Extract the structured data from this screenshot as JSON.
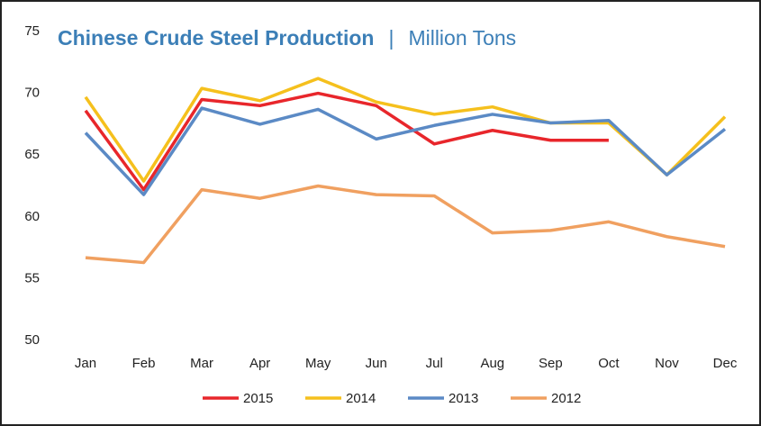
{
  "chart_data": {
    "type": "line",
    "title": "Chinese Crude Steel Production",
    "title_separator": "|",
    "subtitle": "Million Tons",
    "categories": [
      "Jan",
      "Feb",
      "Mar",
      "Apr",
      "May",
      "Jun",
      "Jul",
      "Aug",
      "Sep",
      "Oct",
      "Nov",
      "Dec"
    ],
    "series": [
      {
        "name": "2015",
        "color": "#e8262b",
        "values": [
          68.6,
          62.2,
          69.5,
          69.0,
          70.0,
          69.0,
          65.9,
          67.0,
          66.2,
          66.2,
          null,
          null
        ]
      },
      {
        "name": "2014",
        "color": "#f5c01d",
        "values": [
          69.7,
          62.9,
          70.4,
          69.4,
          71.2,
          69.3,
          68.3,
          68.9,
          67.6,
          67.6,
          63.4,
          68.1
        ]
      },
      {
        "name": "2013",
        "color": "#5b8ac5",
        "values": [
          66.8,
          61.8,
          68.8,
          67.5,
          68.7,
          66.3,
          67.4,
          68.3,
          67.6,
          67.8,
          63.4,
          67.1
        ]
      },
      {
        "name": "2012",
        "color": "#f0a060",
        "values": [
          56.7,
          56.3,
          62.2,
          61.5,
          62.5,
          61.8,
          61.7,
          58.7,
          58.9,
          59.6,
          58.4,
          57.6
        ]
      }
    ],
    "ylim": [
      50,
      75
    ],
    "yticks": [
      50,
      55,
      60,
      65,
      70,
      75
    ],
    "grid": false,
    "legend": "bottom"
  }
}
